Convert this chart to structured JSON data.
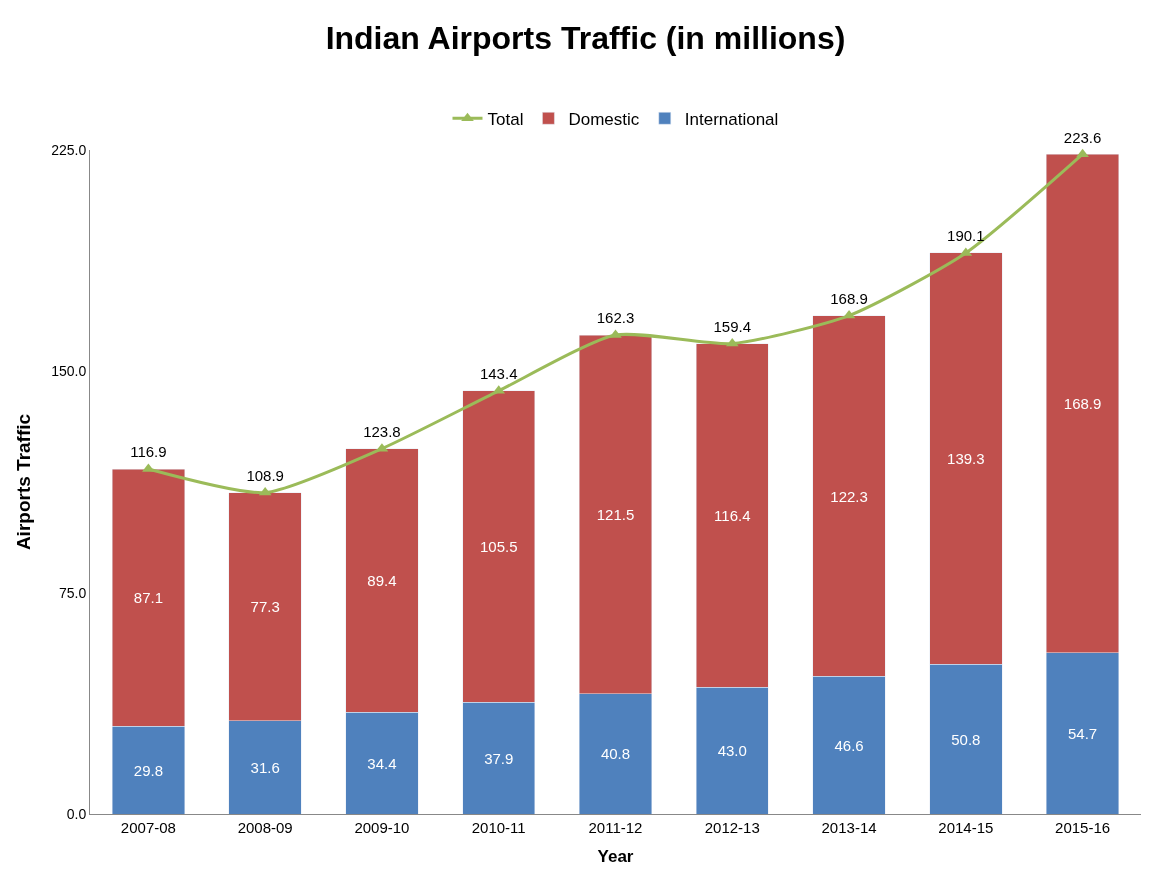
{
  "chart_data": {
    "type": "bar",
    "stacked": true,
    "title": "Indian Airports Traffic (in millions)",
    "xlabel": "Year",
    "ylabel": "Airports Traffic",
    "categories": [
      "2007-08",
      "2008-09",
      "2009-10",
      "2010-11",
      "2011-12",
      "2012-13",
      "2013-14",
      "2014-15",
      "2015-16"
    ],
    "series": [
      {
        "name": "International",
        "color": "#4f81bd",
        "values": [
          29.8,
          31.6,
          34.4,
          37.9,
          40.8,
          43.0,
          46.6,
          50.8,
          54.7
        ],
        "value_labels": [
          "29.8",
          "31.6",
          "34.4",
          "37.9",
          "40.8",
          "43.0",
          "46.6",
          "50.8",
          "54.7"
        ]
      },
      {
        "name": "Domestic",
        "color": "#c0504d",
        "values": [
          87.1,
          77.3,
          89.4,
          105.5,
          121.5,
          116.4,
          122.3,
          139.3,
          168.9
        ]
      },
      {
        "name": "Total",
        "type": "line",
        "color": "#9bbb59",
        "marker": "triangle",
        "values": [
          116.9,
          108.9,
          123.8,
          143.4,
          162.3,
          159.4,
          168.9,
          190.1,
          223.6
        ]
      }
    ],
    "ylim": [
      0,
      225
    ],
    "yticks": [
      {
        "value": 0,
        "label": "0.0"
      },
      {
        "value": 75,
        "label": "75.0"
      },
      {
        "value": 150,
        "label": "150.0"
      },
      {
        "value": 225,
        "label": "225.0"
      }
    ],
    "legend": "top",
    "data_labels": true
  }
}
